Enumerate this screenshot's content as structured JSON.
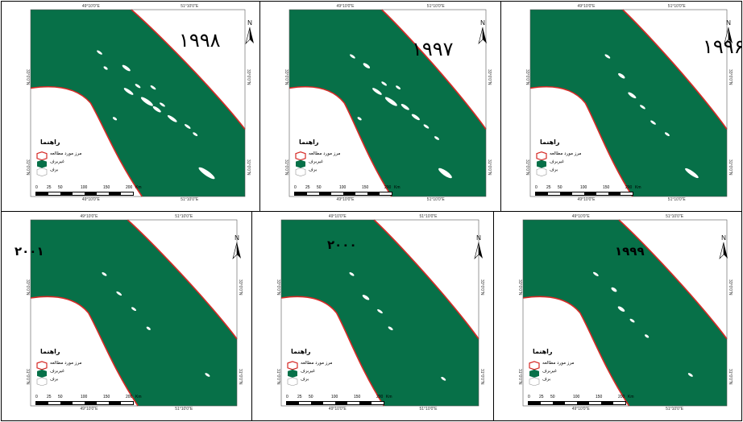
{
  "panels": [
    {
      "year_label": "۱۹۹۸",
      "label_style": "big"
    },
    {
      "year_label": "۱۹۹۷",
      "label_style": "big"
    },
    {
      "year_label": "۱۹۹۶",
      "label_style": "big"
    },
    {
      "year_label": "۲۰۰۱",
      "label_style": "small"
    },
    {
      "year_label": "۲۰۰۰",
      "label_style": "small"
    },
    {
      "year_label": "۱۹۹۹",
      "label_style": "small"
    }
  ],
  "map_common": {
    "north_label": "N",
    "lon_ticks": [
      "49°10'0\"E",
      "51°10'0\"E"
    ],
    "lat_ticks": [
      "33°0'0\"N",
      "31°0'0\"N"
    ],
    "legend_title": "راهنما",
    "legend_items": [
      "مرز مورد مطالعه",
      "غیربرف",
      "برف"
    ],
    "scale_ticks": [
      "0",
      "25",
      "50",
      "100",
      "150",
      "200"
    ],
    "scale_unit": "Km"
  },
  "colors": {
    "study_area": "#077048",
    "boundary": "#d62a26",
    "snow": "#ffffff",
    "background": "#ffffff"
  }
}
